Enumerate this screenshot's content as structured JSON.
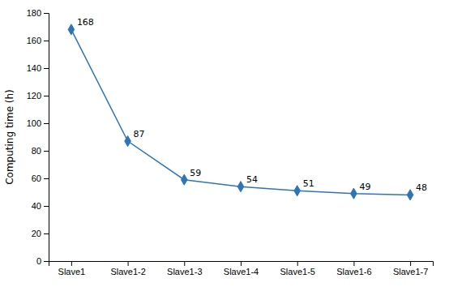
{
  "chart_data": {
    "type": "line",
    "categories": [
      "Slave1",
      "Slave1-2",
      "Slave1-3",
      "Slave1-4",
      "Slave1-5",
      "Slave1-6",
      "Slave1-7"
    ],
    "values": [
      168,
      87,
      59,
      54,
      51,
      49,
      48
    ],
    "color": "#2E75B6",
    "marker": "diamond",
    "ylabel": "Computing time (h)",
    "ylim": [
      0,
      180
    ],
    "yticks": [
      0,
      20,
      40,
      60,
      80,
      100,
      120,
      140,
      160,
      180
    ],
    "grid": false,
    "data_labels": true
  }
}
